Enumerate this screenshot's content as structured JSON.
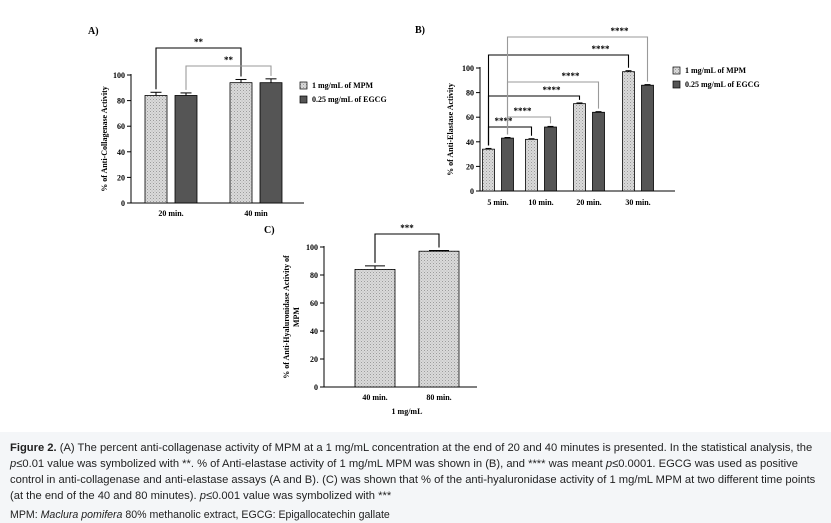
{
  "panels": {
    "A": "A)",
    "B": "B)",
    "C": "C)"
  },
  "colors": {
    "mpm_fill": "#dadada",
    "egcg_fill": "#555555",
    "axis": "#000000",
    "bracket_black": "#000000",
    "bracket_gray": "#9a9a9a"
  },
  "chart_data": [
    {
      "id": "A",
      "type": "bar",
      "title": "",
      "ylabel": "% of Anti-Collagenase Activity",
      "xlabel": "",
      "ylim": [
        0,
        100
      ],
      "yticks": [
        0,
        20,
        40,
        60,
        80,
        100
      ],
      "categories": [
        "20 min.",
        "40 min"
      ],
      "series": [
        {
          "name": "1 mg/mL of MPM",
          "values": [
            84,
            94
          ],
          "errors": [
            2.5,
            2.5
          ]
        },
        {
          "name": "0.25 mg/mL of EGCG",
          "values": [
            84,
            94
          ],
          "errors": [
            2,
            3
          ]
        }
      ],
      "legend": {
        "position": "right",
        "entries": [
          "1 mg/mL of MPM",
          "0.25 mg/mL of EGCG"
        ]
      },
      "significance": [
        {
          "label": "**",
          "from": [
            0,
            0
          ],
          "to": [
            1,
            0
          ],
          "color": "black"
        },
        {
          "label": "**",
          "from": [
            0,
            1
          ],
          "to": [
            1,
            1
          ],
          "color": "gray"
        }
      ]
    },
    {
      "id": "B",
      "type": "bar",
      "title": "",
      "ylabel": "% of Anti-Elastase Activity",
      "xlabel": "",
      "ylim": [
        0,
        100
      ],
      "yticks": [
        0,
        20,
        40,
        60,
        80,
        100
      ],
      "categories": [
        "5 min.",
        "10 min.",
        "20 min.",
        "30 min."
      ],
      "series": [
        {
          "name": "1 mg/mL of MPM",
          "values": [
            34,
            42,
            71,
            97
          ],
          "errors": [
            0.6,
            0.5,
            0.6,
            0.8
          ]
        },
        {
          "name": "0.25 mg/mL of EGCG",
          "values": [
            43,
            52,
            64,
            86
          ],
          "errors": [
            0.5,
            0.5,
            0.5,
            0.5
          ]
        }
      ],
      "legend": {
        "position": "right",
        "entries": [
          "1 mg/mL of MPM",
          "0.25 mg/mL of EGCG"
        ]
      },
      "significance": [
        {
          "label": "****",
          "from": [
            0,
            0
          ],
          "to": [
            1,
            0
          ],
          "color": "black"
        },
        {
          "label": "****",
          "from": [
            0,
            1
          ],
          "to": [
            1,
            1
          ],
          "color": "gray"
        },
        {
          "label": "****",
          "from": [
            0,
            0
          ],
          "to": [
            2,
            0
          ],
          "color": "black"
        },
        {
          "label": "****",
          "from": [
            0,
            1
          ],
          "to": [
            2,
            1
          ],
          "color": "gray"
        },
        {
          "label": "****",
          "from": [
            0,
            0
          ],
          "to": [
            3,
            0
          ],
          "color": "black"
        },
        {
          "label": "****",
          "from": [
            0,
            1
          ],
          "to": [
            3,
            1
          ],
          "color": "gray"
        }
      ]
    },
    {
      "id": "C",
      "type": "bar",
      "title": "",
      "ylabel": "% of Anti-Hyaluronidase Activity of MPM",
      "xlabel": "1 mg/mL",
      "ylim": [
        0,
        100
      ],
      "yticks": [
        0,
        20,
        40,
        60,
        80,
        100
      ],
      "categories": [
        "40 min.",
        "80 min."
      ],
      "series": [
        {
          "name": "",
          "values": [
            84,
            97
          ],
          "errors": [
            2.5,
            0.5
          ]
        }
      ],
      "significance": [
        {
          "label": "***",
          "from": [
            0,
            0
          ],
          "to": [
            1,
            0
          ],
          "color": "black"
        }
      ]
    }
  ],
  "caption": {
    "figure_label": "Figure 2.",
    "text_1": " (A) The percent anti-collagenase activity of MPM at a 1 mg/mL concentration at the end of 20 and 40 minutes is presented. In the statistical analysis, the ",
    "p_1": "p",
    "text_2": "≤0.01 value was symbolized with **. % of Anti-elastase activity of 1 mg/mL MPM was shown in (B), and **** was meant ",
    "p_2": "p",
    "text_3": "≤0.0001. EGCG was used as positive control in anti-collagenase and anti-elastase assays (A and B). (C) was shown that % of the anti-hyaluronidase activity of 1 mg/mL MPM at two different time points (at the end of the 40 and 80 minutes). ",
    "p_3": "p",
    "text_4": "≤0.001 value was symbolized with ***",
    "abbrev_prefix": "MPM: ",
    "abbrev_species": "Maclura pomifera",
    "abbrev_rest": " 80% methanolic extract, EGCG: Epigallocatechin gallate"
  }
}
